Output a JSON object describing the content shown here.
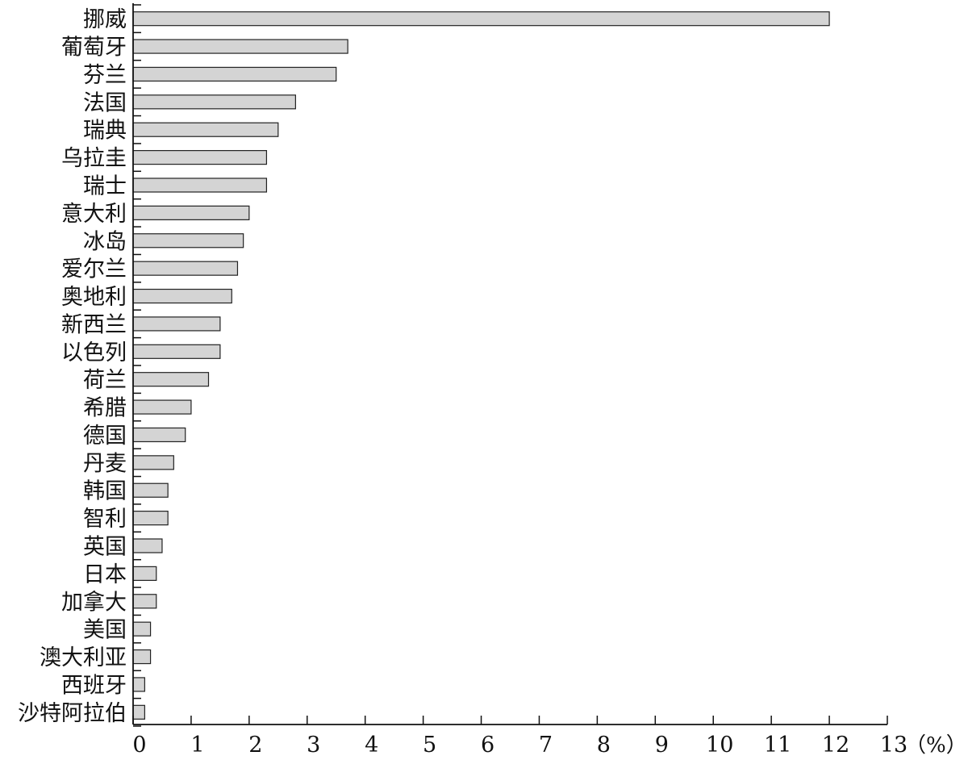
{
  "chart_data": {
    "type": "bar",
    "orientation": "horizontal",
    "categories": [
      "挪威",
      "葡萄牙",
      "芬兰",
      "法国",
      "瑞典",
      "乌拉圭",
      "瑞士",
      "意大利",
      "冰岛",
      "爱尔兰",
      "奥地利",
      "新西兰",
      "以色列",
      "荷兰",
      "希腊",
      "德国",
      "丹麦",
      "韩国",
      "智利",
      "英国",
      "日本",
      "加拿大",
      "美国",
      "澳大利亚",
      "西班牙",
      "沙特阿拉伯"
    ],
    "values": [
      12.0,
      3.7,
      3.5,
      2.8,
      2.5,
      2.3,
      2.3,
      2.0,
      1.9,
      1.8,
      1.7,
      1.5,
      1.5,
      1.3,
      1.0,
      0.9,
      0.7,
      0.6,
      0.6,
      0.5,
      0.4,
      0.4,
      0.3,
      0.3,
      0.2,
      0.2
    ],
    "xlim": [
      0,
      13
    ],
    "xticks": [
      "0",
      "1",
      "2",
      "3",
      "4",
      "5",
      "6",
      "7",
      "8",
      "9",
      "10",
      "11",
      "12",
      "13"
    ],
    "xunit": "（%）",
    "grid": false,
    "bar_color": "#d4d4d4",
    "edge_color": "#222222"
  }
}
